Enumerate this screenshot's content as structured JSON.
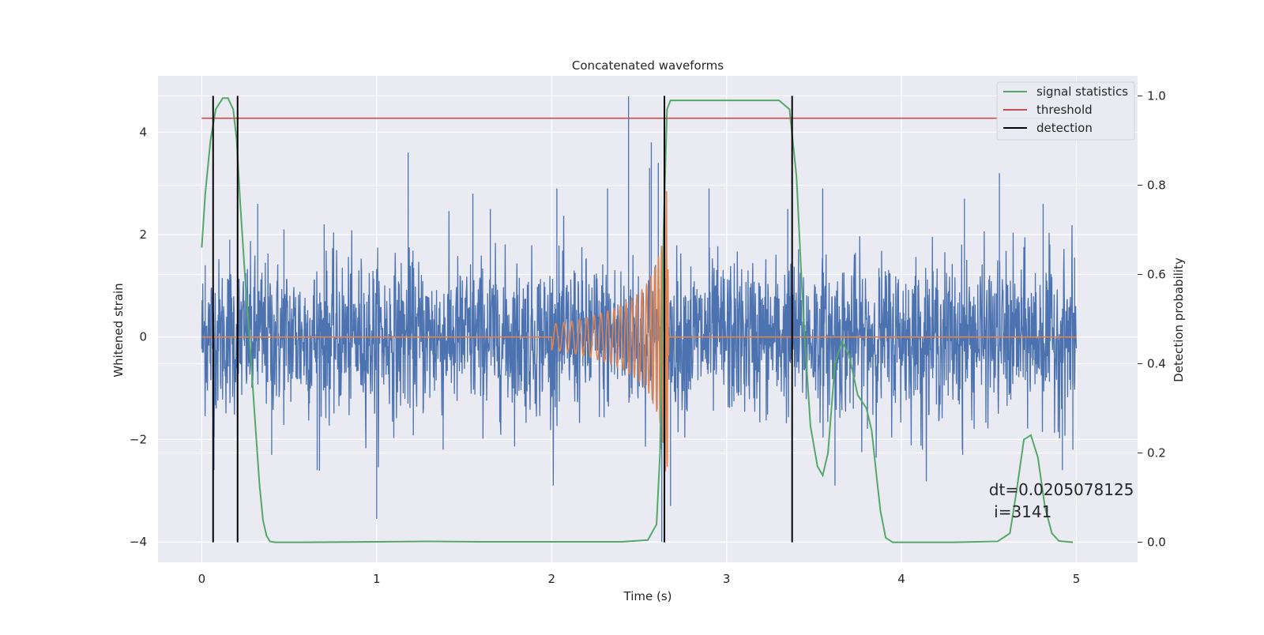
{
  "chart_data": {
    "type": "line",
    "title": "Concatenated waveforms",
    "xlabel": "Time (s)",
    "ylabel": "Whitened strain",
    "y2label": "Detection probability",
    "xlim": [
      -0.25,
      5.35
    ],
    "ylim": [
      -4.4,
      5.1
    ],
    "y2lim": [
      -0.045,
      1.045
    ],
    "x_ticks": [
      0,
      1,
      2,
      3,
      4,
      5
    ],
    "x_tick_labels": [
      "0",
      "1",
      "2",
      "3",
      "4",
      "5"
    ],
    "y_ticks": [
      -4,
      -2,
      0,
      2,
      4
    ],
    "y_tick_labels": [
      "−4",
      "−2",
      "0",
      "2",
      "4"
    ],
    "y2_ticks": [
      0.0,
      0.2,
      0.4,
      0.6,
      0.8,
      1.0
    ],
    "y2_tick_labels": [
      "0.0",
      "0.2",
      "0.4",
      "0.6",
      "0.8",
      "1.0"
    ],
    "grid": true,
    "legend_position": "top-right",
    "colors": {
      "background": "#eaeaf2",
      "grid": "#ffffff",
      "noise": "#4c72b0",
      "waveform": "#dd8452",
      "signal": "#55a868",
      "threshold": "#c44e52",
      "detection": "#000000"
    },
    "series": [
      {
        "name": "",
        "axis": "left",
        "kind": "noise",
        "x_range": [
          0,
          5
        ],
        "std": 0.75,
        "spikes": [
          [
            0.02,
            1.4
          ],
          [
            0.16,
            1.9
          ],
          [
            0.32,
            2.6
          ],
          [
            0.47,
            2.1
          ],
          [
            0.7,
            2.2
          ],
          [
            1.18,
            3.6
          ],
          [
            1.55,
            2.8
          ],
          [
            1.65,
            2.5
          ],
          [
            2.03,
            2.9
          ],
          [
            2.32,
            2.9
          ],
          [
            2.44,
            4.7
          ],
          [
            2.56,
            3.3
          ],
          [
            2.57,
            3.8
          ],
          [
            2.61,
            3.4
          ],
          [
            2.9,
            2.9
          ],
          [
            3.35,
            2.5
          ],
          [
            3.55,
            2.9
          ],
          [
            4.36,
            2.7
          ],
          [
            4.56,
            3.2
          ],
          [
            4.81,
            2.6
          ],
          [
            4.99,
            1.55
          ],
          [
            0.07,
            -2.6
          ],
          [
            0.4,
            -2.3
          ],
          [
            1.0,
            -3.55
          ],
          [
            0.66,
            -2.6
          ],
          [
            1.38,
            -2.2
          ],
          [
            2.68,
            -3.3
          ],
          [
            2.63,
            -4.0
          ],
          [
            3.62,
            -2.9
          ],
          [
            4.12,
            -2.2
          ],
          [
            4.35,
            -2.3
          ],
          [
            4.92,
            -2.6
          ],
          [
            4.98,
            -2.2
          ]
        ]
      },
      {
        "name": "",
        "axis": "left",
        "kind": "chirp",
        "x": [
          0,
          2.0,
          2.1,
          2.2,
          2.3,
          2.4,
          2.5,
          2.55,
          2.6,
          2.63,
          2.65,
          2.66,
          2.67,
          5.0
        ],
        "amplitude": [
          0,
          0.25,
          0.3,
          0.38,
          0.48,
          0.62,
          0.85,
          1.05,
          1.45,
          1.8,
          2.6,
          3.0,
          0.0,
          0
        ]
      },
      {
        "name": "signal statistics",
        "axis": "right",
        "x": [
          0.0,
          0.02,
          0.05,
          0.08,
          0.12,
          0.15,
          0.18,
          0.2,
          0.22,
          0.25,
          0.28,
          0.3,
          0.33,
          0.35,
          0.37,
          0.39,
          0.42,
          0.6,
          1.0,
          1.3,
          1.6,
          2.0,
          2.4,
          2.55,
          2.6,
          2.62,
          2.64,
          2.66,
          2.68,
          2.72,
          3.0,
          3.3,
          3.36,
          3.4,
          3.44,
          3.48,
          3.52,
          3.55,
          3.58,
          3.62,
          3.66,
          3.7,
          3.75,
          3.8,
          3.83,
          3.86,
          3.88,
          3.91,
          3.95,
          4.3,
          4.55,
          4.62,
          4.66,
          4.7,
          4.74,
          4.78,
          4.82,
          4.86,
          4.9,
          4.98
        ],
        "y": [
          0.66,
          0.78,
          0.9,
          0.97,
          0.995,
          0.995,
          0.97,
          0.9,
          0.76,
          0.58,
          0.42,
          0.3,
          0.13,
          0.05,
          0.015,
          0.002,
          0.0,
          0.0,
          0.001,
          0.002,
          0.001,
          0.001,
          0.001,
          0.005,
          0.04,
          0.2,
          0.7,
          0.97,
          0.99,
          0.99,
          0.99,
          0.99,
          0.97,
          0.82,
          0.5,
          0.26,
          0.17,
          0.15,
          0.2,
          0.4,
          0.45,
          0.42,
          0.33,
          0.3,
          0.25,
          0.14,
          0.07,
          0.01,
          0.0,
          0.0,
          0.002,
          0.02,
          0.12,
          0.23,
          0.24,
          0.19,
          0.08,
          0.02,
          0.003,
          0.0
        ]
      },
      {
        "name": "threshold",
        "axis": "right",
        "x": [
          0,
          5
        ],
        "y": [
          0.95,
          0.95
        ]
      },
      {
        "name": "detection",
        "axis": "right",
        "x_positions": [
          0.065,
          0.205,
          2.645,
          3.375
        ],
        "y_range": [
          0,
          1
        ]
      }
    ],
    "annotation": {
      "line1": "dt=0.0205078125",
      "line2": " i=3141",
      "x": 4.5,
      "y": 0.105
    }
  }
}
